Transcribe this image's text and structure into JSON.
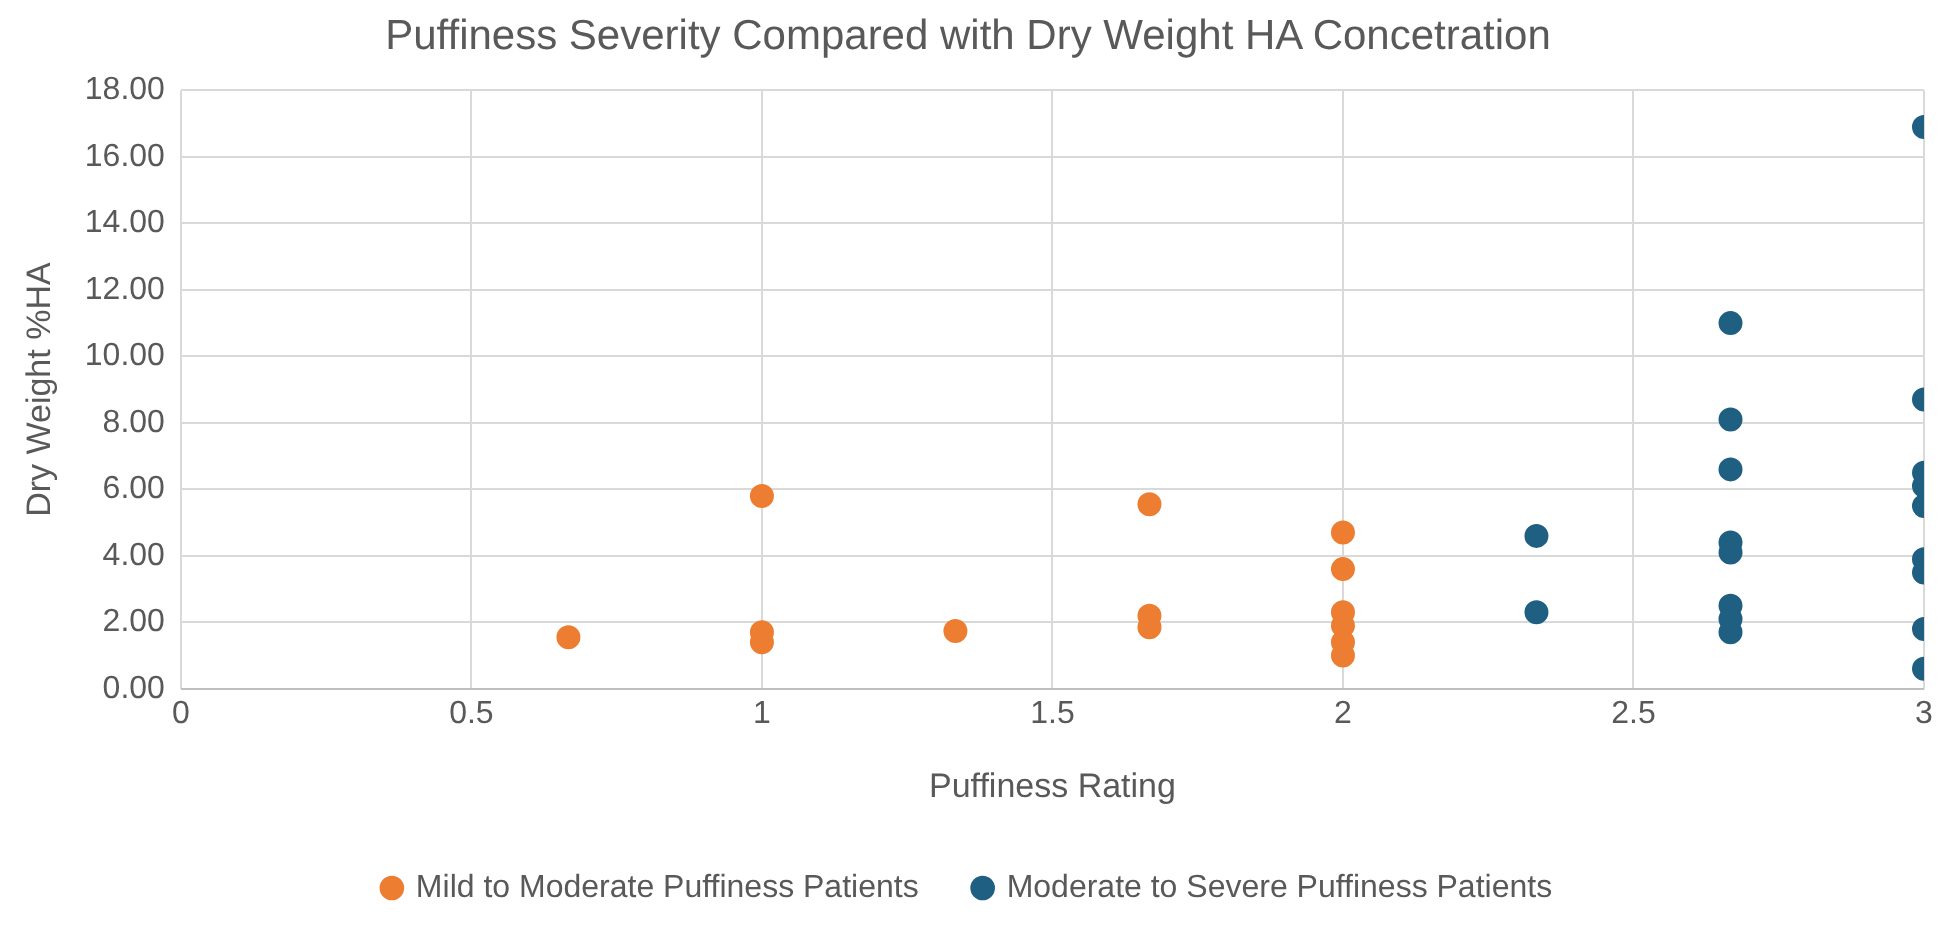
{
  "chart_data": {
    "type": "scatter",
    "title": "Puffiness Severity Compared with Dry Weight HA Concetration",
    "xlabel": "Puffiness Rating",
    "ylabel": "Dry Weight %HA",
    "series": [
      {
        "name": "Mild to Moderate Puffiness Patients",
        "color": "#ed7d31",
        "x": [
          0.667,
          1,
          1,
          1,
          1.333,
          1.667,
          1.667,
          1.667,
          2,
          2,
          2,
          2,
          2,
          2
        ],
        "values": [
          1.55,
          5.8,
          1.7,
          1.4,
          1.74,
          5.55,
          2.2,
          1.85,
          4.7,
          3.6,
          2.3,
          1.9,
          1.4,
          1.0
        ]
      },
      {
        "name": "Moderate to Severe Puffiness Patients",
        "color": "#1f5f82",
        "x": [
          2.333,
          2.333,
          2.667,
          2.667,
          2.667,
          2.667,
          2.667,
          2.667,
          2.667,
          2.667,
          3,
          3,
          3,
          3,
          3,
          3,
          3,
          3,
          3
        ],
        "values": [
          4.6,
          2.3,
          11.0,
          8.1,
          6.6,
          4.4,
          4.1,
          2.5,
          2.1,
          1.7,
          16.9,
          8.7,
          6.5,
          6.1,
          5.5,
          3.9,
          3.5,
          1.8,
          0.6
        ]
      }
    ],
    "xlim": [
      0,
      3
    ],
    "xticks": [
      0,
      0.5,
      1,
      1.5,
      2,
      2.5,
      3
    ],
    "ylim": [
      0,
      18
    ],
    "yticks": [
      {
        "value": 0,
        "label": "0.00"
      },
      {
        "value": 2,
        "label": "2.00"
      },
      {
        "value": 4,
        "label": "4.00"
      },
      {
        "value": 6,
        "label": "6.00"
      },
      {
        "value": 8,
        "label": "8.00"
      },
      {
        "value": 10,
        "label": "10.00"
      },
      {
        "value": 12,
        "label": "12.00"
      },
      {
        "value": 14,
        "label": "14.00"
      },
      {
        "value": 16,
        "label": "16.00"
      },
      {
        "value": 18,
        "label": "18.00"
      }
    ],
    "grid": true,
    "legend": "bottom",
    "marker": "circle"
  }
}
